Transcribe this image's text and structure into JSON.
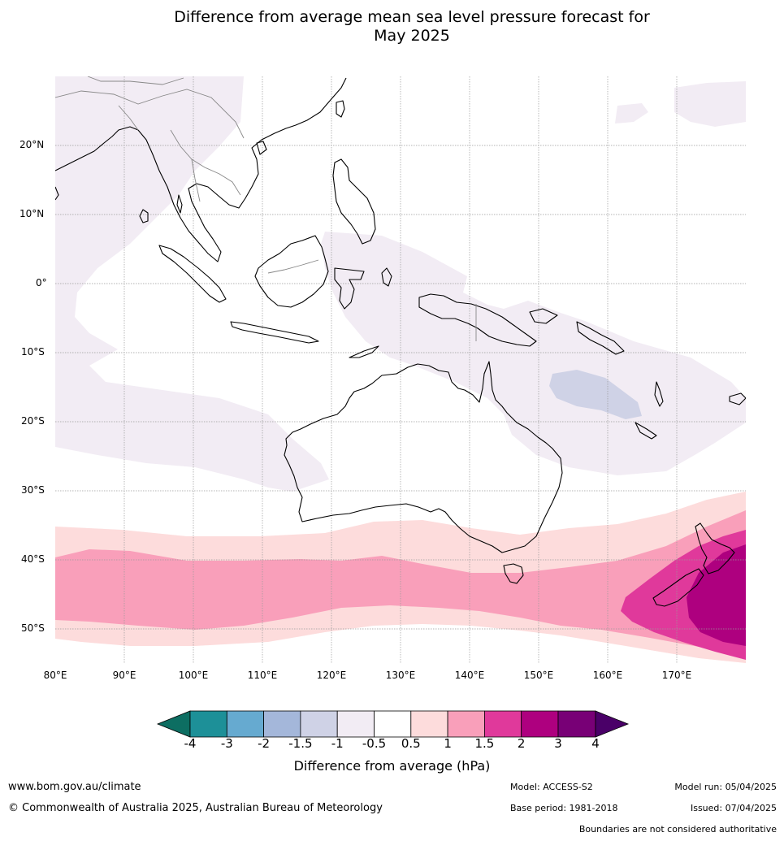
{
  "title": {
    "line1": "Difference from average mean sea level pressure forecast for",
    "line2": "May 2025"
  },
  "latitude_labels": [
    "20°N",
    "10°N",
    "0°",
    "10°S",
    "20°S",
    "30°S",
    "40°S",
    "50°S"
  ],
  "longitude_labels": [
    "80°E",
    "90°E",
    "100°E",
    "110°E",
    "120°E",
    "130°E",
    "140°E",
    "150°E",
    "160°E",
    "170°E"
  ],
  "colorbar": {
    "ticks": [
      "-4",
      "-3",
      "-2",
      "-1.5",
      "-1",
      "-0.5",
      "0.5",
      "1",
      "1.5",
      "2",
      "3",
      "4"
    ],
    "colors": [
      "#0d6e62",
      "#1d9098",
      "#66aad0",
      "#a4b7da",
      "#cfd2e6",
      "#f2ecf4",
      "#ffffff",
      "#fddcdc",
      "#f99fba",
      "#e0399b",
      "#ae007f",
      "#780076",
      "#4a0068"
    ],
    "label": "Difference from average (hPa)"
  },
  "footer": {
    "website": "www.bom.gov.au/climate",
    "copyright": "© Commonwealth of Australia 2025, Australian Bureau of Meteorology",
    "model": "Model: ACCESS-S2",
    "base_period": "Base period: 1981-2018",
    "model_run": "Model run: 05/04/2025",
    "issued": "Issued: 07/04/2025",
    "disclaimer": "Boundaries are not considered authoritative"
  }
}
